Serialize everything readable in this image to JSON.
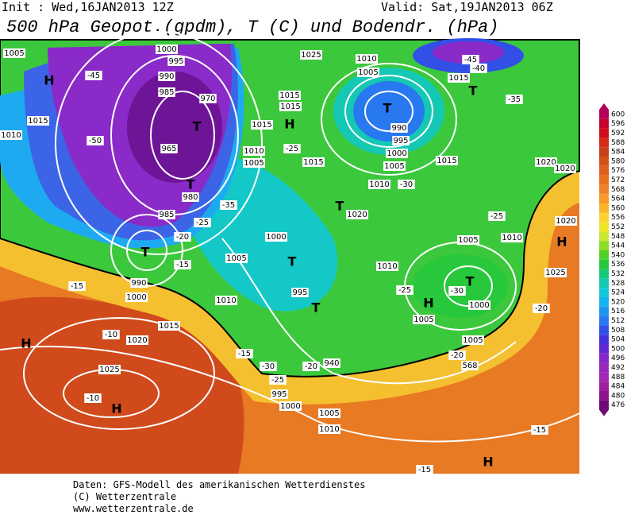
{
  "header": {
    "init": "Init : Wed,16JAN2013 12Z",
    "valid": "Valid: Sat,19JAN2013 06Z",
    "title": "500 hPa Geopot.(gpdm), T (C) und Bodendr. (hPa)"
  },
  "colorbar": {
    "levels": [
      600,
      596,
      592,
      588,
      584,
      580,
      576,
      572,
      568,
      564,
      560,
      556,
      552,
      548,
      544,
      540,
      536,
      532,
      528,
      524,
      520,
      516,
      512,
      508,
      504,
      500,
      496,
      492,
      488,
      484,
      480,
      476
    ],
    "colors": [
      "#b4005a",
      "#c8002c",
      "#d20a1e",
      "#d42a1a",
      "#c84018",
      "#d25018",
      "#dc601c",
      "#e67020",
      "#f08228",
      "#f59a28",
      "#f8b42a",
      "#fad232",
      "#f0e628",
      "#c8e632",
      "#8cdc28",
      "#50d228",
      "#28c83c",
      "#14c878",
      "#14c8b4",
      "#14c8dc",
      "#14b4f0",
      "#1e96f0",
      "#2878f0",
      "#3250e6",
      "#4632dc",
      "#6428d2",
      "#8228c8",
      "#9628be",
      "#a028b4",
      "#a01ea0",
      "#8c148c",
      "#6e0a78"
    ]
  },
  "map_labels": [
    "1005",
    "H",
    "1000",
    "995",
    "990",
    "985",
    "970",
    "T",
    "965",
    "-45",
    "-50",
    "1015",
    "1010",
    "T",
    "980",
    "985",
    "T",
    "990",
    "1000",
    "1025",
    "1010",
    "1005",
    "T",
    "990",
    "995",
    "1000",
    "1005",
    "1015",
    "1015",
    "H",
    "1015",
    "1010",
    "1005",
    "-25",
    "1015",
    "1010",
    "-30",
    "1015",
    "1020",
    "1020",
    "T",
    "-35",
    "1015",
    "-45",
    "-40",
    "1020",
    "T",
    "1000",
    "1005",
    "T",
    "995",
    "T",
    "1010",
    "-25",
    "H",
    "1005",
    "T",
    "1000",
    "-30",
    "1005",
    "1010",
    "H",
    "1020",
    "1025",
    "-20",
    "-25",
    "1010",
    "1015",
    "H",
    "-10",
    "1020",
    "1025",
    "-10",
    "H",
    "-15",
    "-20",
    "-15",
    "-25",
    "-35",
    "-30",
    "-20",
    "940",
    "995",
    "1000",
    "1005",
    "1010",
    "-15",
    "-20",
    "568",
    "1005",
    "-15",
    "-15",
    "H",
    "-25"
  ],
  "footer": [
    "Daten: GFS-Modell des amerikanischen Wetterdienstes",
    "(C) Wetterzentrale",
    "www.wetterzentrale.de"
  ]
}
